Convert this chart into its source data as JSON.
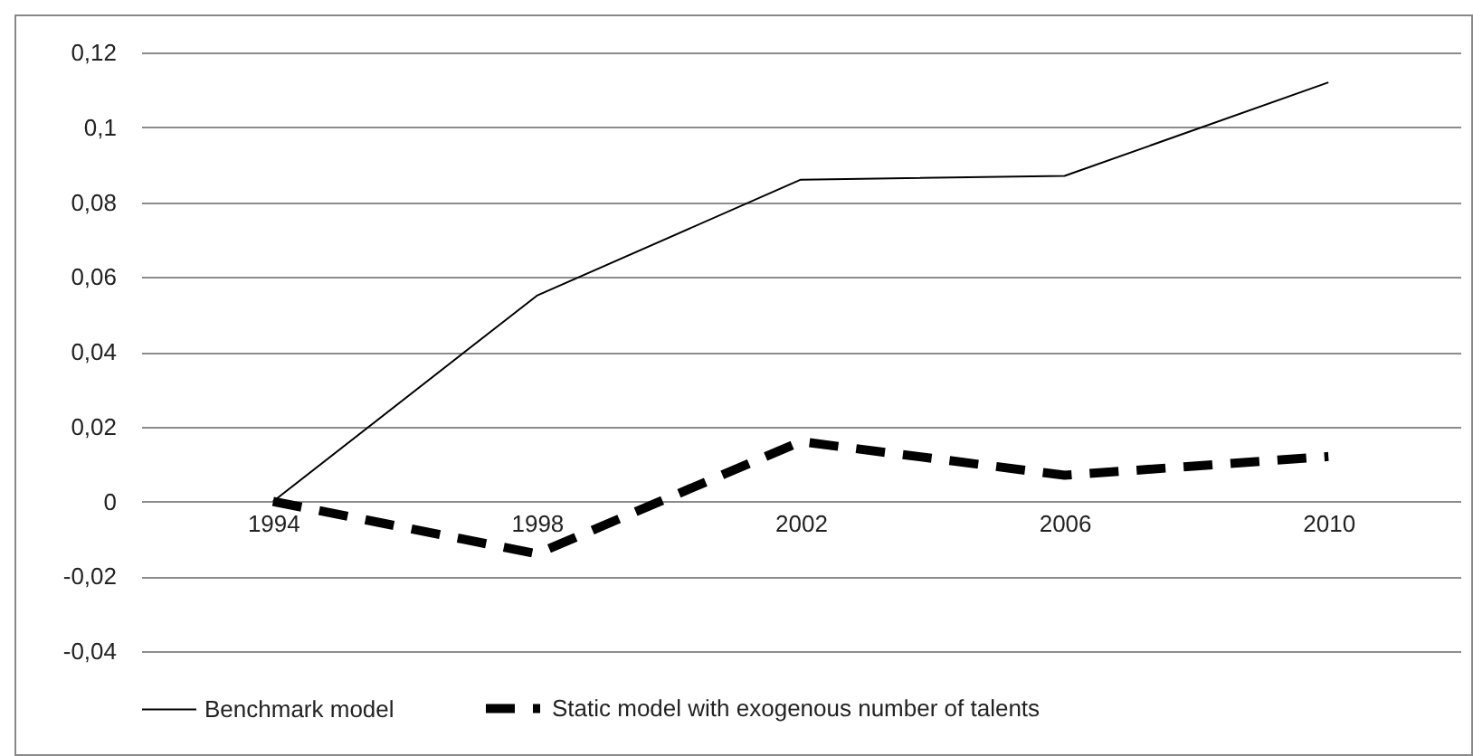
{
  "chart_data": {
    "type": "line",
    "categories": [
      "1994",
      "1998",
      "2002",
      "2006",
      "2010"
    ],
    "series": [
      {
        "name": "Benchmark model",
        "color": "#000000",
        "line_style": "solid",
        "values": [
          0,
          0.055,
          0.086,
          0.087,
          0.112
        ]
      },
      {
        "name": "Static model with exogenous number of talents",
        "color": "#000000",
        "line_style": "dashed",
        "values": [
          0,
          -0.014,
          0.016,
          0.007,
          0.012
        ]
      }
    ],
    "ylim": [
      -0.04,
      0.12
    ],
    "yticks": [
      {
        "value": -0.04,
        "label": "-0,04"
      },
      {
        "value": -0.02,
        "label": "-0,02"
      },
      0,
      {
        "value": 0.02,
        "label": "0,02"
      },
      {
        "value": 0.04,
        "label": "0,04"
      },
      {
        "value": 0.06,
        "label": "0,06"
      },
      {
        "value": 0.08,
        "label": "0,08"
      },
      {
        "value": 0.1,
        "label": "0,1"
      },
      {
        "value": 0.12,
        "label": "0,12"
      }
    ],
    "grid": "y",
    "legend": "bottom",
    "marker": "none"
  }
}
